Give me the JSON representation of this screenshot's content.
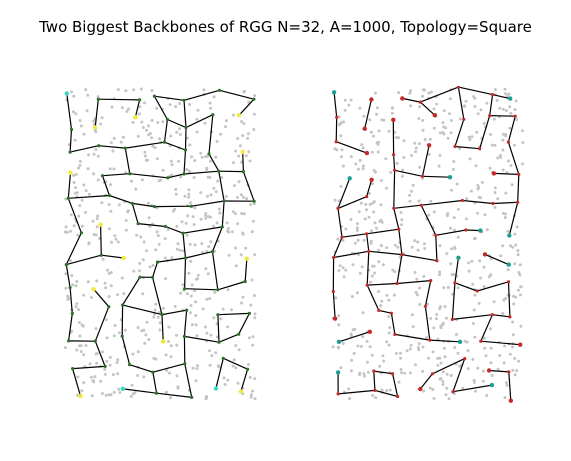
{
  "figure": {
    "title": "Two Biggest Backbones of RGG N=32, A=1000, Topology=Square"
  },
  "colors": {
    "background_node": "#c4c4c4",
    "edge": "#000000",
    "left_node": "#2d6e2d",
    "left_accent": "#f0ea3a",
    "left_accent_alt": "#3ad6c8",
    "right_node": "#c62828",
    "right_accent": "#1e9e8e"
  },
  "panels": [
    {
      "id": "backbone-1",
      "accent": "yellow"
    },
    {
      "id": "backbone-2",
      "accent": "red"
    }
  ]
}
